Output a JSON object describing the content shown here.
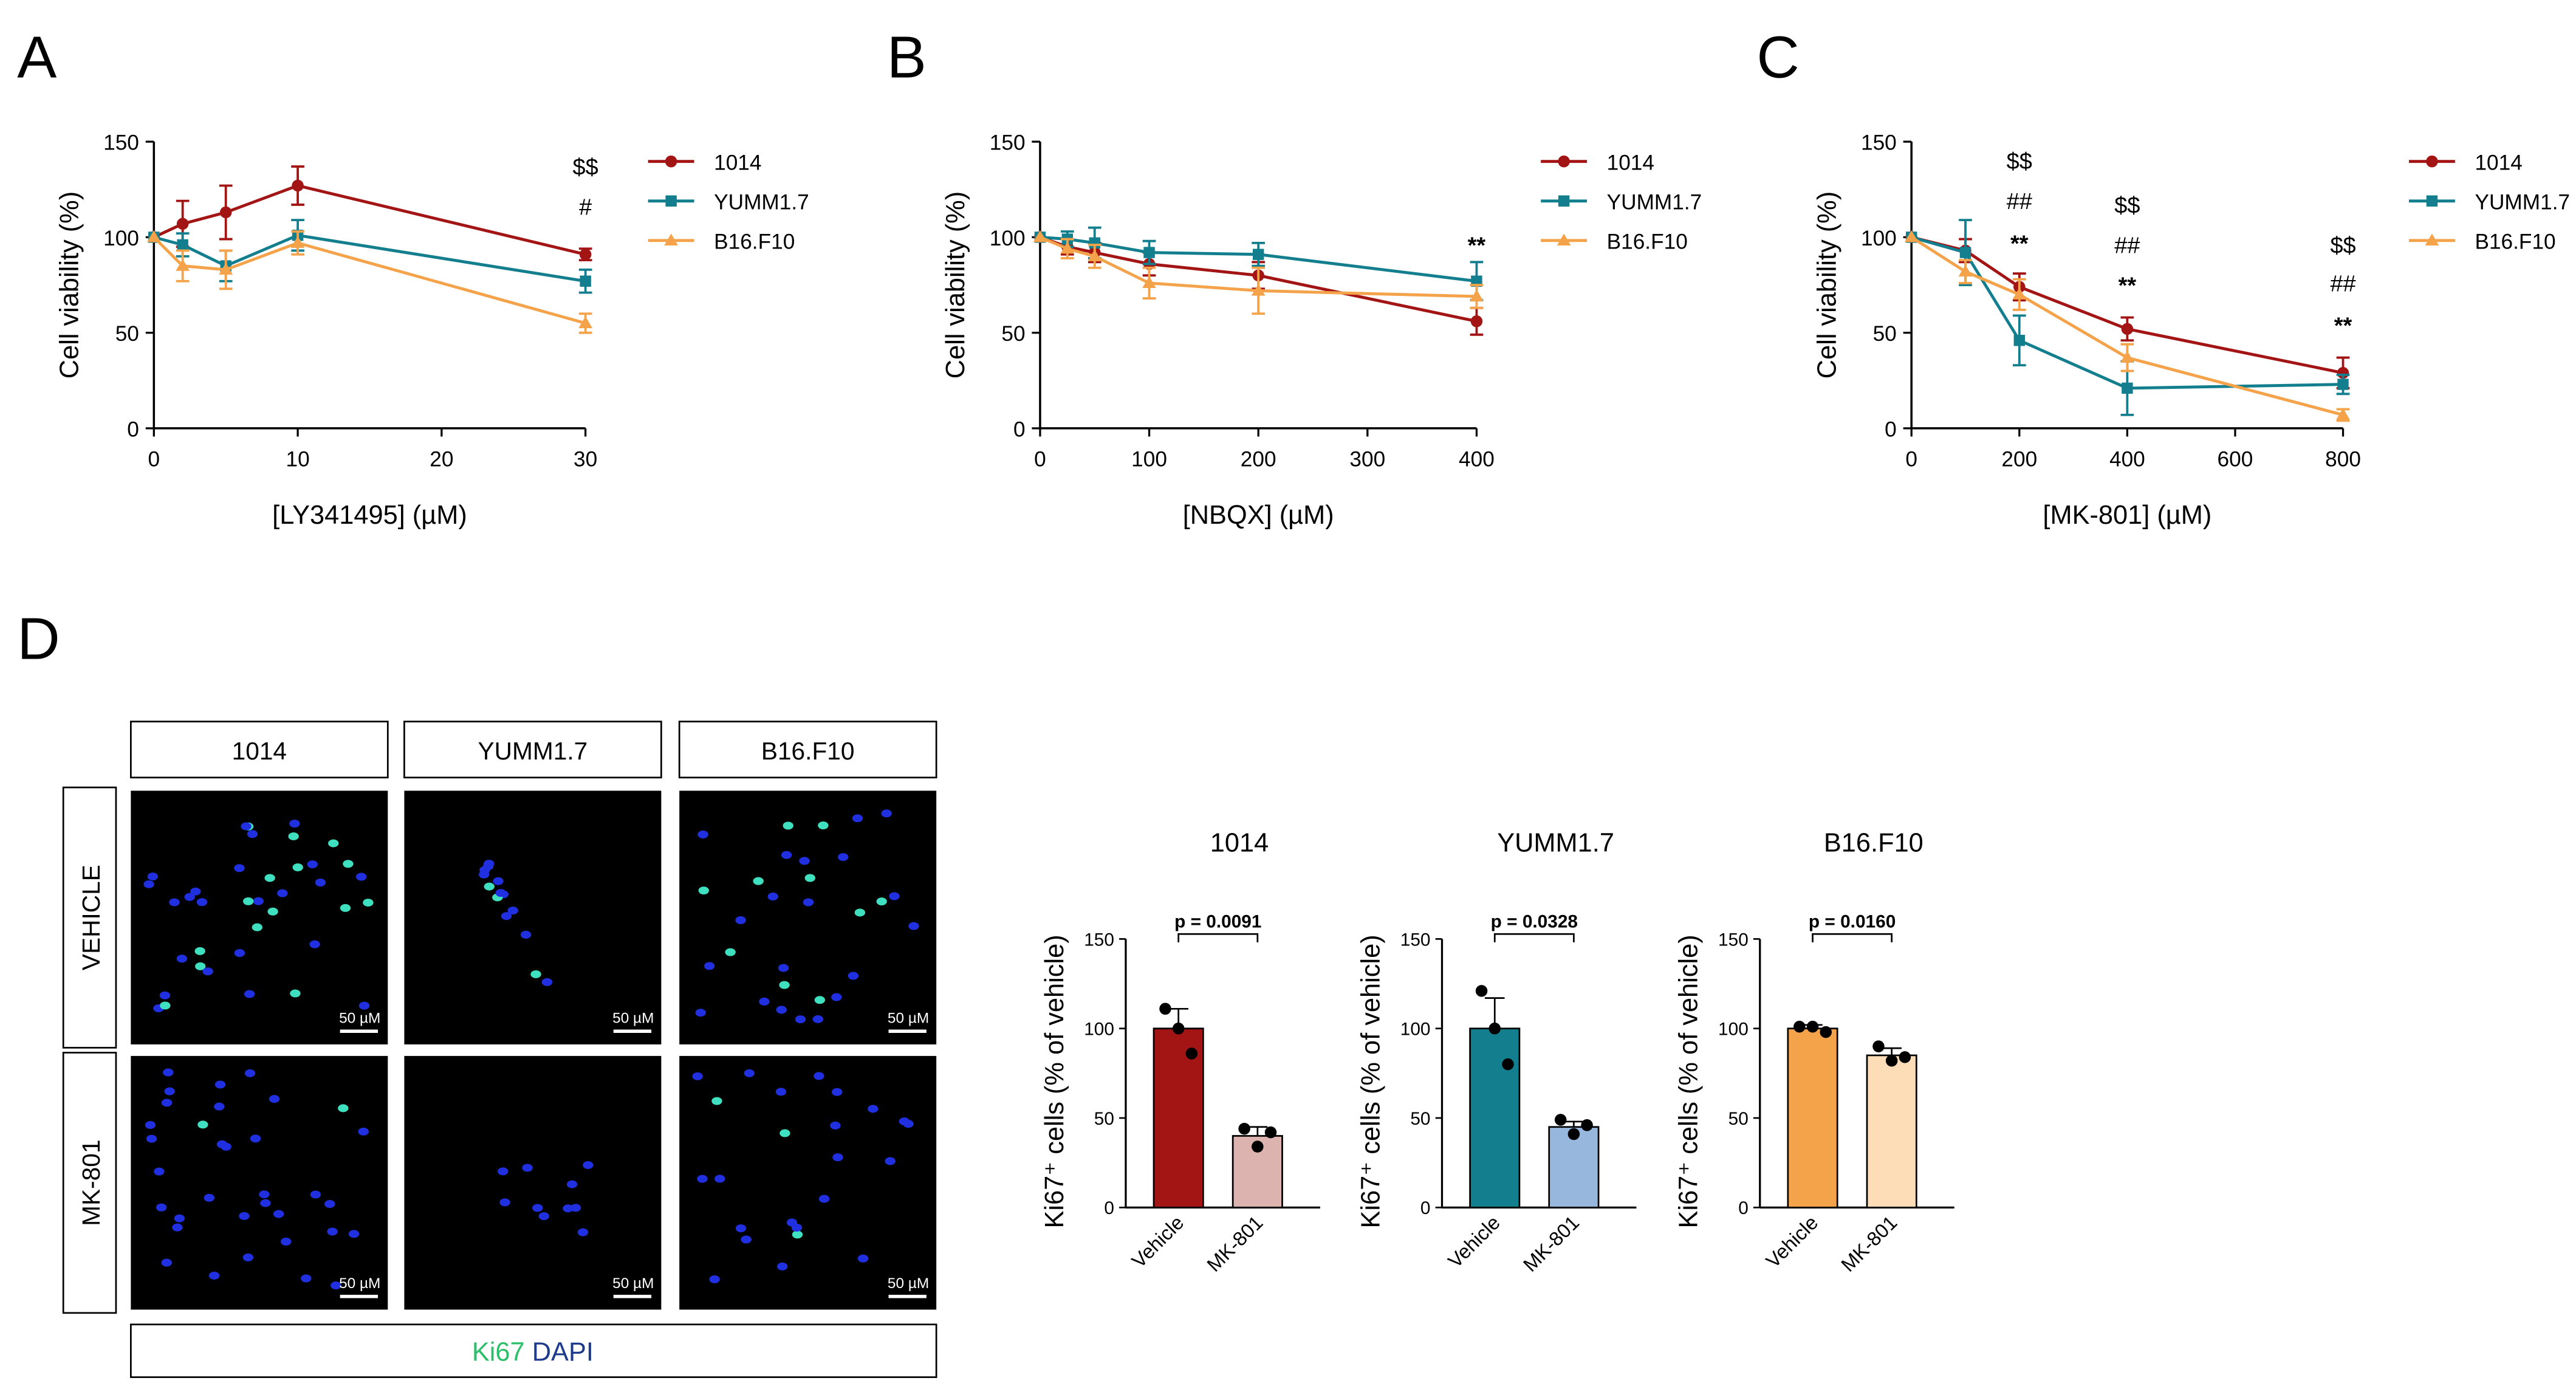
{
  "colors": {
    "s1014": "#A31414",
    "yumm": "#137F8E",
    "b16": "#F5A34A",
    "bar_mk_1014": "#DDB3B0",
    "bar_mk_yumm": "#98B7DD",
    "bar_mk_b16": "#FCDDB8",
    "ki67_green": "#2BBF6A",
    "dapi_blue": "#1E3A8A"
  },
  "panel_letters": {
    "a": "A",
    "b": "B",
    "c": "C",
    "d": "D"
  },
  "line_legend": [
    "1014",
    "YUMM1.7",
    "B16.F10"
  ],
  "chart_data": [
    {
      "id": "A",
      "type": "line",
      "xlabel": "[LY341495] (µM)",
      "ylabel": "Cell viability (%)",
      "xlim": [
        0,
        30
      ],
      "ylim": [
        0,
        150
      ],
      "xticks": [
        0,
        10,
        20,
        30
      ],
      "yticks": [
        0,
        50,
        100,
        150
      ],
      "series": [
        {
          "name": "1014",
          "x": [
            0,
            2,
            5,
            10,
            30
          ],
          "y": [
            100,
            107,
            113,
            127,
            91
          ],
          "err": [
            0,
            12,
            14,
            10,
            3
          ]
        },
        {
          "name": "YUMM1.7",
          "x": [
            0,
            2,
            5,
            10,
            30
          ],
          "y": [
            100,
            96,
            85,
            101,
            77
          ],
          "err": [
            0,
            6,
            8,
            8,
            6
          ]
        },
        {
          "name": "B16.F10",
          "x": [
            0,
            2,
            5,
            10,
            30
          ],
          "y": [
            100,
            85,
            83,
            97,
            55
          ],
          "err": [
            0,
            8,
            10,
            6,
            5
          ]
        }
      ],
      "annotations": [
        {
          "text": "$$",
          "x": 30,
          "y": 137
        },
        {
          "text": "#",
          "x": 30,
          "y": 116
        }
      ]
    },
    {
      "id": "B",
      "type": "line",
      "xlabel": "[NBQX] (µM)",
      "ylabel": "Cell viability (%)",
      "xlim": [
        0,
        400
      ],
      "ylim": [
        0,
        150
      ],
      "xticks": [
        0,
        100,
        200,
        300,
        400
      ],
      "yticks": [
        0,
        50,
        100,
        150
      ],
      "series": [
        {
          "name": "1014",
          "x": [
            0,
            25,
            50,
            100,
            200,
            400
          ],
          "y": [
            100,
            95,
            92,
            86,
            80,
            56
          ],
          "err": [
            0,
            4,
            5,
            6,
            7,
            7
          ]
        },
        {
          "name": "YUMM1.7",
          "x": [
            0,
            25,
            50,
            100,
            200,
            400
          ],
          "y": [
            100,
            99,
            97,
            92,
            91,
            77
          ],
          "err": [
            0,
            4,
            8,
            6,
            6,
            10
          ]
        },
        {
          "name": "B16.F10",
          "x": [
            0,
            25,
            50,
            100,
            200,
            400
          ],
          "y": [
            100,
            94,
            90,
            76,
            72,
            69
          ],
          "err": [
            0,
            5,
            6,
            8,
            12,
            6
          ]
        }
      ],
      "annotations": [
        {
          "text": "**",
          "x": 400,
          "y": 96
        }
      ]
    },
    {
      "id": "C",
      "type": "line",
      "xlabel": "[MK-801] (µM)",
      "ylabel": "Cell viability (%)",
      "xlim": [
        0,
        800
      ],
      "ylim": [
        0,
        150
      ],
      "xticks": [
        0,
        200,
        400,
        600,
        800
      ],
      "yticks": [
        0,
        50,
        100,
        150
      ],
      "series": [
        {
          "name": "1014",
          "x": [
            0,
            100,
            200,
            400,
            800
          ],
          "y": [
            100,
            93,
            74,
            52,
            29
          ],
          "err": [
            0,
            6,
            7,
            6,
            8
          ]
        },
        {
          "name": "YUMM1.7",
          "x": [
            0,
            100,
            200,
            400,
            800
          ],
          "y": [
            100,
            92,
            46,
            21,
            23
          ],
          "err": [
            0,
            17,
            13,
            14,
            5
          ]
        },
        {
          "name": "B16.F10",
          "x": [
            0,
            100,
            200,
            400,
            800
          ],
          "y": [
            100,
            82,
            70,
            37,
            7
          ],
          "err": [
            0,
            6,
            8,
            7,
            3
          ]
        }
      ],
      "annotations": [
        {
          "text": "$$",
          "x": 200,
          "y": 140
        },
        {
          "text": "##",
          "x": 200,
          "y": 119
        },
        {
          "text": "**",
          "x": 200,
          "y": 97
        },
        {
          "text": "$$",
          "x": 400,
          "y": 117
        },
        {
          "text": "##",
          "x": 400,
          "y": 96
        },
        {
          "text": "**",
          "x": 400,
          "y": 75
        },
        {
          "text": "$$",
          "x": 800,
          "y": 96
        },
        {
          "text": "##",
          "x": 800,
          "y": 76
        },
        {
          "text": "**",
          "x": 800,
          "y": 54
        }
      ]
    },
    {
      "id": "D-1014",
      "type": "bar",
      "title": "1014",
      "ylabel": "Ki67⁺ cells (% of vehicle)",
      "categories": [
        "Vehicle",
        "MK-801"
      ],
      "values": [
        100,
        40
      ],
      "err": [
        11,
        5
      ],
      "points": [
        [
          111,
          100,
          86
        ],
        [
          44,
          34,
          42
        ]
      ],
      "ylim": [
        0,
        150
      ],
      "yticks": [
        0,
        50,
        100,
        150
      ],
      "pvalue": "p = 0.0091"
    },
    {
      "id": "D-YUMM1.7",
      "type": "bar",
      "title": "YUMM1.7",
      "ylabel": "Ki67⁺ cells (% of vehicle)",
      "categories": [
        "Vehicle",
        "MK-801"
      ],
      "values": [
        100,
        45
      ],
      "err": [
        17,
        3
      ],
      "points": [
        [
          121,
          100,
          80
        ],
        [
          49,
          41,
          46
        ]
      ],
      "ylim": [
        0,
        150
      ],
      "yticks": [
        0,
        50,
        100,
        150
      ],
      "pvalue": "p = 0.0328"
    },
    {
      "id": "D-B16.F10",
      "type": "bar",
      "title": "B16.F10",
      "ylabel": "Ki67⁺ cells (% of vehicle)",
      "categories": [
        "Vehicle",
        "MK-801"
      ],
      "values": [
        100,
        85
      ],
      "err": [
        2,
        4
      ],
      "points": [
        [
          101,
          101,
          98
        ],
        [
          90,
          82,
          84
        ]
      ],
      "ylim": [
        0,
        150
      ],
      "yticks": [
        0,
        50,
        100,
        150
      ],
      "pvalue": "p = 0.0160"
    }
  ],
  "micrographs": {
    "columns": [
      "1014",
      "YUMM1.7",
      "B16.F10"
    ],
    "rows": [
      "VEHICLE",
      "MK-801"
    ],
    "scale_bar": "50 µM",
    "stain_ki67": "Ki67",
    "stain_dapi": "DAPI"
  }
}
